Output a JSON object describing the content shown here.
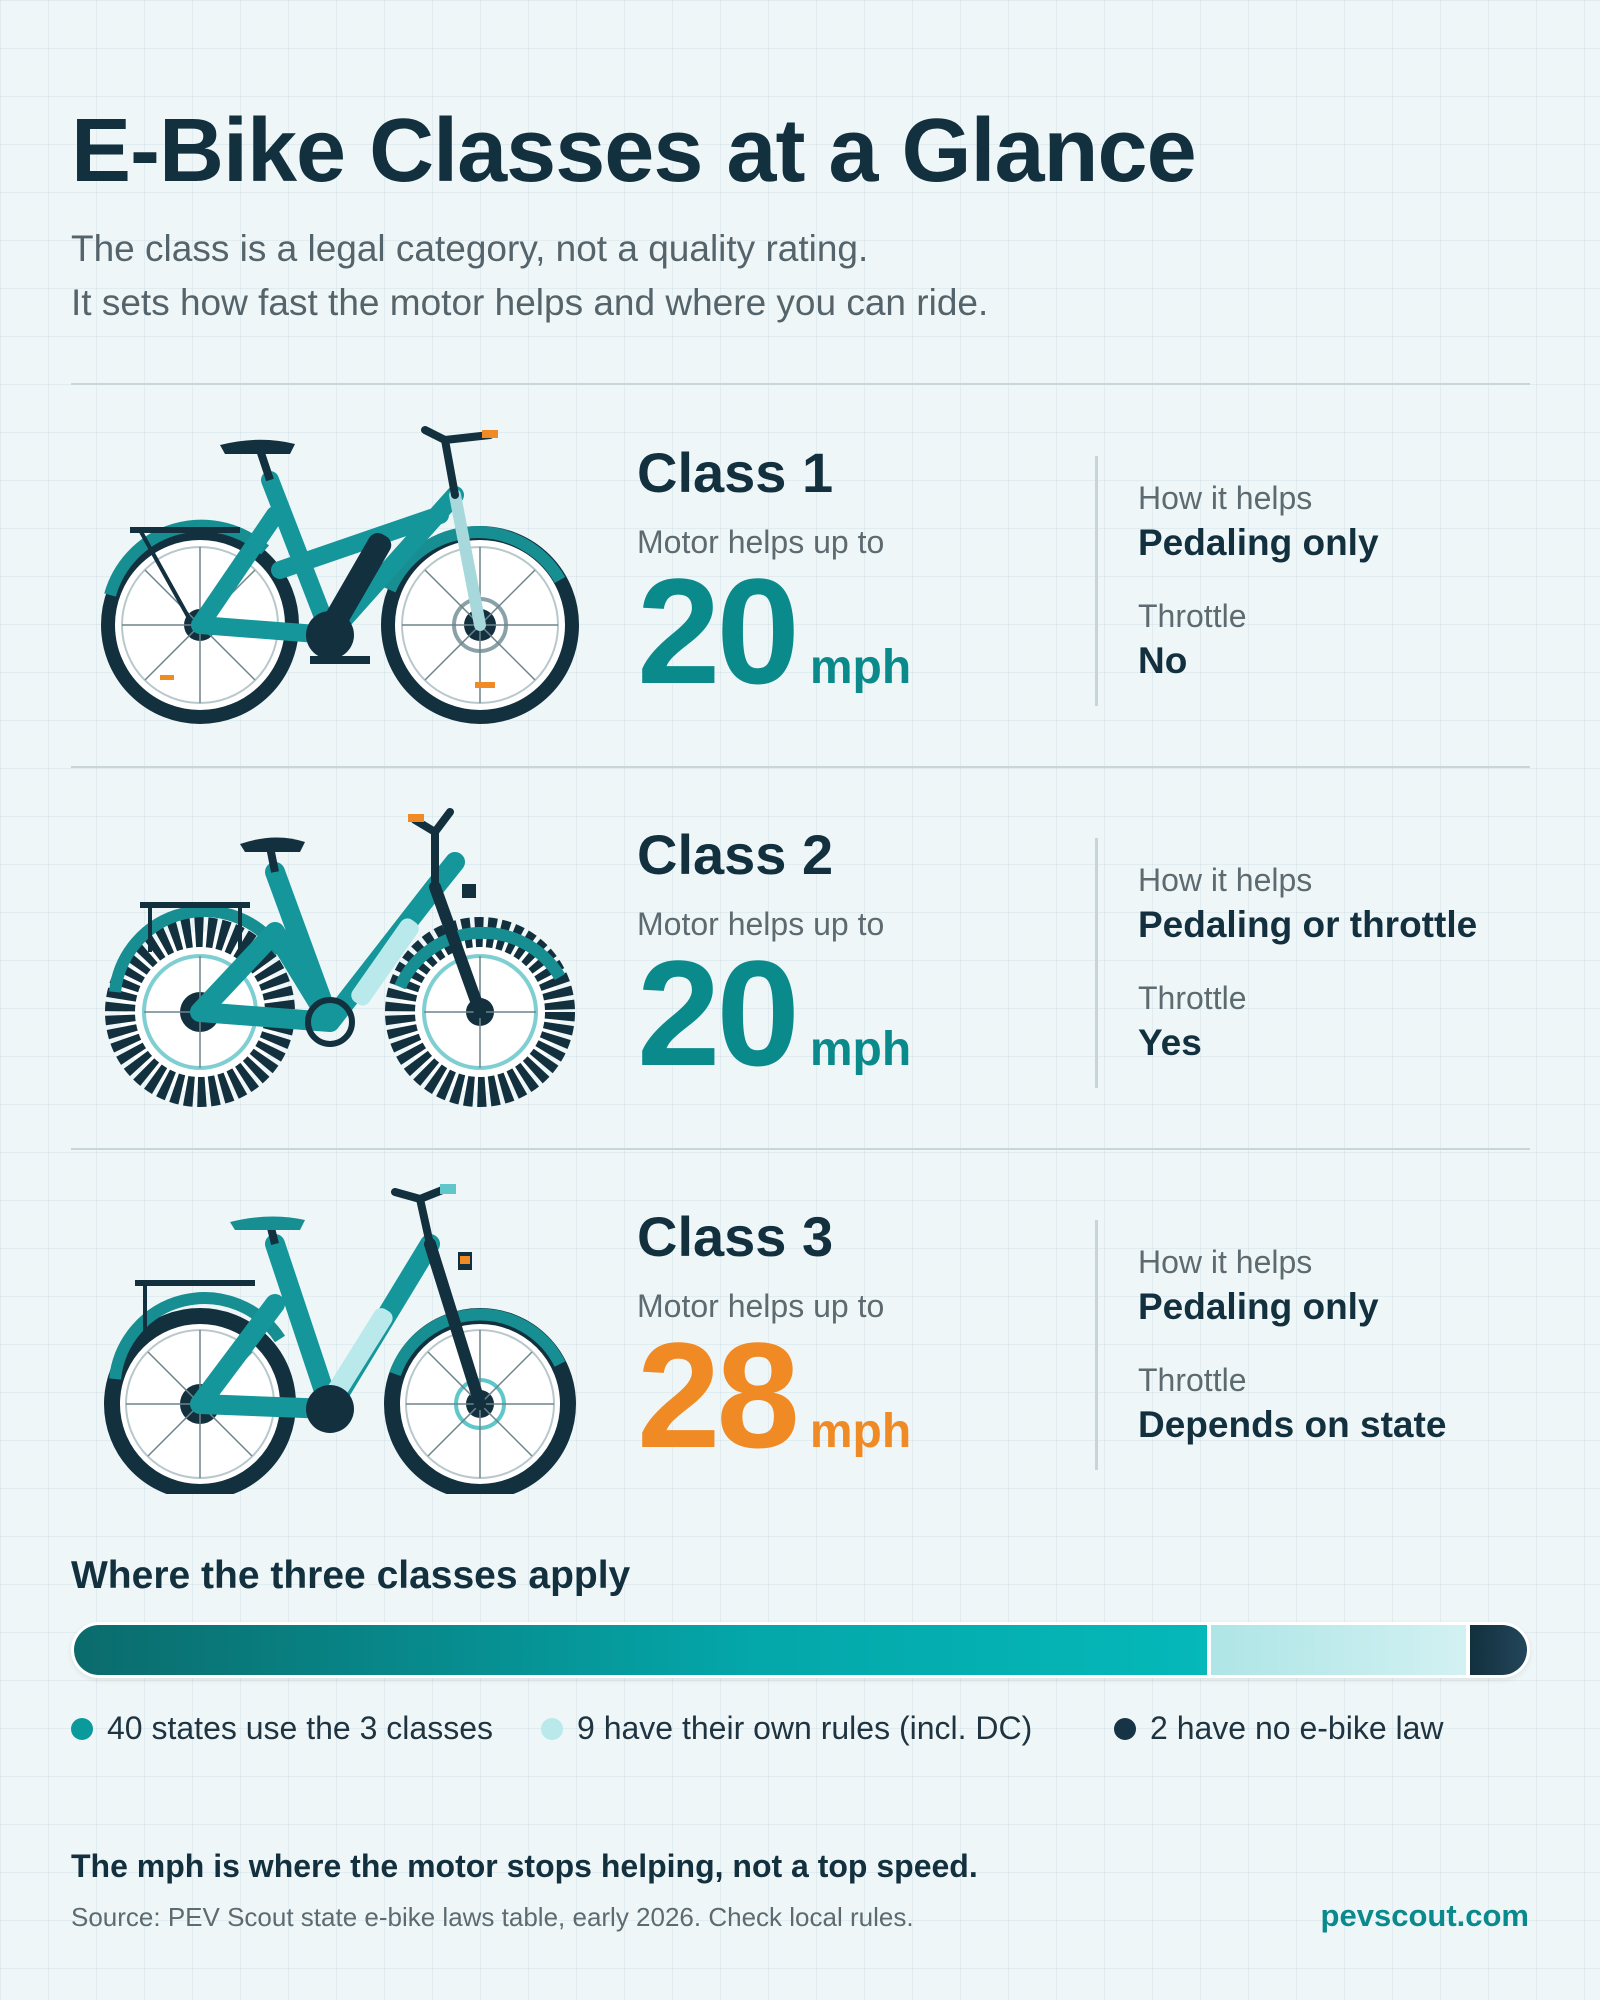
{
  "title": "E-Bike Classes at a Glance",
  "subtitle": {
    "line1": "The class is a legal category, not a quality rating.",
    "line2": "It sets how fast the motor helps and where you can ride."
  },
  "classes": [
    {
      "name": "Class 1",
      "motor_label": "Motor helps up to",
      "speed": "20",
      "unit": "mph",
      "accent": "#0b8a8b",
      "helps_label": "How it helps",
      "helps_value": "Pedaling only",
      "throttle_label": "Throttle",
      "throttle_value": "No",
      "bike_icon": "commuter-bike-icon"
    },
    {
      "name": "Class 2",
      "motor_label": "Motor helps up to",
      "speed": "20",
      "unit": "mph",
      "accent": "#0b8a8b",
      "helps_label": "How it helps",
      "helps_value": "Pedaling or throttle",
      "throttle_label": "Throttle",
      "throttle_value": "Yes",
      "bike_icon": "fat-tire-bike-icon"
    },
    {
      "name": "Class 3",
      "motor_label": "Motor helps up to",
      "speed": "28",
      "unit": "mph",
      "accent": "#f08a24",
      "helps_label": "How it helps",
      "helps_value": "Pedaling only",
      "throttle_label": "Throttle",
      "throttle_value": "Depends on state",
      "bike_icon": "step-through-bike-icon"
    }
  ],
  "states_bar": {
    "title": "Where the three classes apply",
    "segments": [
      {
        "label": "40 states use the 3 classes",
        "count": 40,
        "color": "#0a9a9c"
      },
      {
        "label": "9 have their own rules (incl. DC)",
        "count": 9,
        "color": "#b9e9ea"
      },
      {
        "label": "2 have no e-bike law",
        "count": 2,
        "color": "#163445"
      }
    ]
  },
  "footnote": "The mph is where the motor stops helping, not a top speed.",
  "source": "Source: PEV Scout state e-bike laws table, early 2026. Check local rules.",
  "brand": "pevscout.com",
  "colors": {
    "teal": "#0b8a8b",
    "orange": "#f08a24",
    "navy": "#12303e"
  }
}
